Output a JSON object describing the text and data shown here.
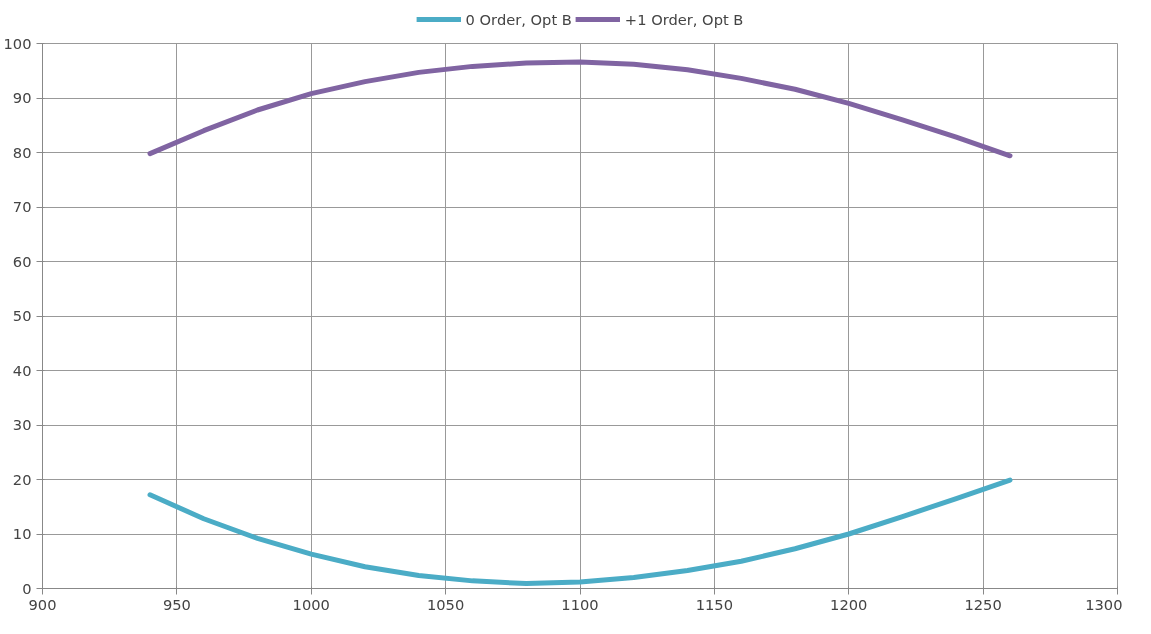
{
  "chart_data": {
    "type": "line",
    "x": [
      940,
      960,
      980,
      1000,
      1020,
      1040,
      1060,
      1080,
      1100,
      1120,
      1140,
      1160,
      1180,
      1200,
      1220,
      1240,
      1260
    ],
    "series": [
      {
        "name": "0 Order, Opt B",
        "color": "#4bacc6",
        "values": [
          17.2,
          12.8,
          9.2,
          6.3,
          4.0,
          2.4,
          1.4,
          0.9,
          1.2,
          2.0,
          3.3,
          5.0,
          7.3,
          10.0,
          13.2,
          16.5,
          19.9
        ]
      },
      {
        "name": "+1 Order, Opt B",
        "color": "#8064a2",
        "values": [
          79.8,
          84.0,
          87.8,
          90.8,
          93.0,
          94.7,
          95.8,
          96.4,
          96.6,
          96.2,
          95.2,
          93.6,
          91.6,
          89.0,
          86.0,
          82.8,
          79.4
        ]
      }
    ],
    "xlim": [
      900,
      1300
    ],
    "xticks": [
      900,
      950,
      1000,
      1050,
      1100,
      1150,
      1200,
      1250,
      1300
    ],
    "ylim": [
      0,
      100
    ],
    "yticks": [
      0,
      10,
      20,
      30,
      40,
      50,
      60,
      70,
      80,
      90,
      100
    ],
    "grid": true,
    "legend": "top",
    "marker": "none",
    "line_style": "solid"
  }
}
